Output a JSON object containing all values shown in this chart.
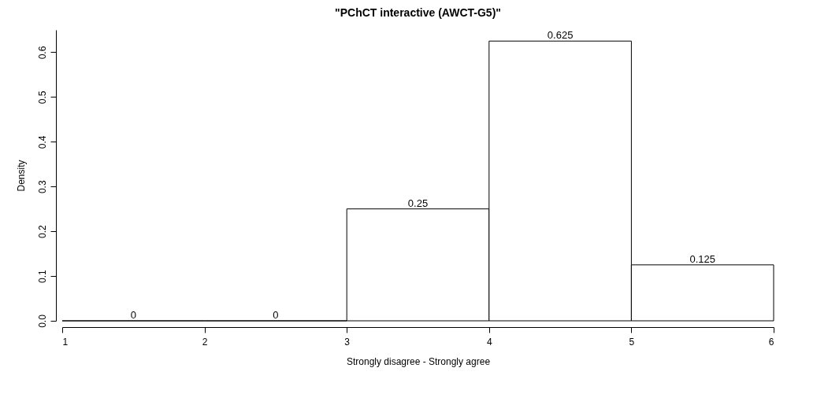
{
  "chart_data": {
    "type": "histogram",
    "title": "\"PChCT interactive (AWCT-G5)\"",
    "xlabel": "Strongly disagree  -  Strongly agree",
    "ylabel": "Density",
    "bins": [
      1,
      2,
      3,
      4,
      5,
      6
    ],
    "values": [
      0,
      0,
      0.25,
      0.625,
      0.125
    ],
    "data_labels": true,
    "grid": false,
    "xlim": [
      1,
      6
    ],
    "xticks": [
      1,
      2,
      3,
      4,
      5,
      6
    ],
    "ylim": [
      0,
      0.65
    ],
    "yticks": [
      {
        "value": 0,
        "label": "0.0"
      },
      0.1,
      0.2,
      0.3,
      0.4,
      0.5,
      0.6
    ]
  }
}
